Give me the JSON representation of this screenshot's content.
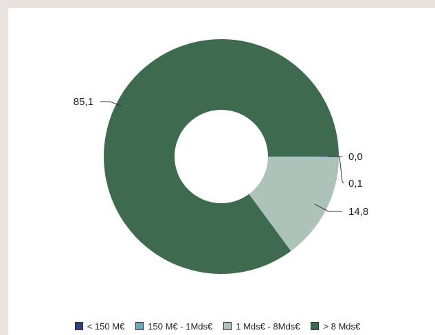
{
  "chart_data": {
    "type": "pie",
    "categories": [
      "< 150 M€",
      "150 M€ - 1Mds€",
      "1 Mds€ - 8Mds€",
      "> 8 Mds€"
    ],
    "values": [
      0.0,
      0.1,
      14.8,
      85.1
    ],
    "value_labels": [
      "0,0",
      "0,1",
      "14,8",
      "85,1"
    ],
    "colors": [
      "#2e3f7f",
      "#6aaab8",
      "#adc2b8",
      "#3e6a4f"
    ],
    "donut": true,
    "legend_position": "bottom"
  }
}
